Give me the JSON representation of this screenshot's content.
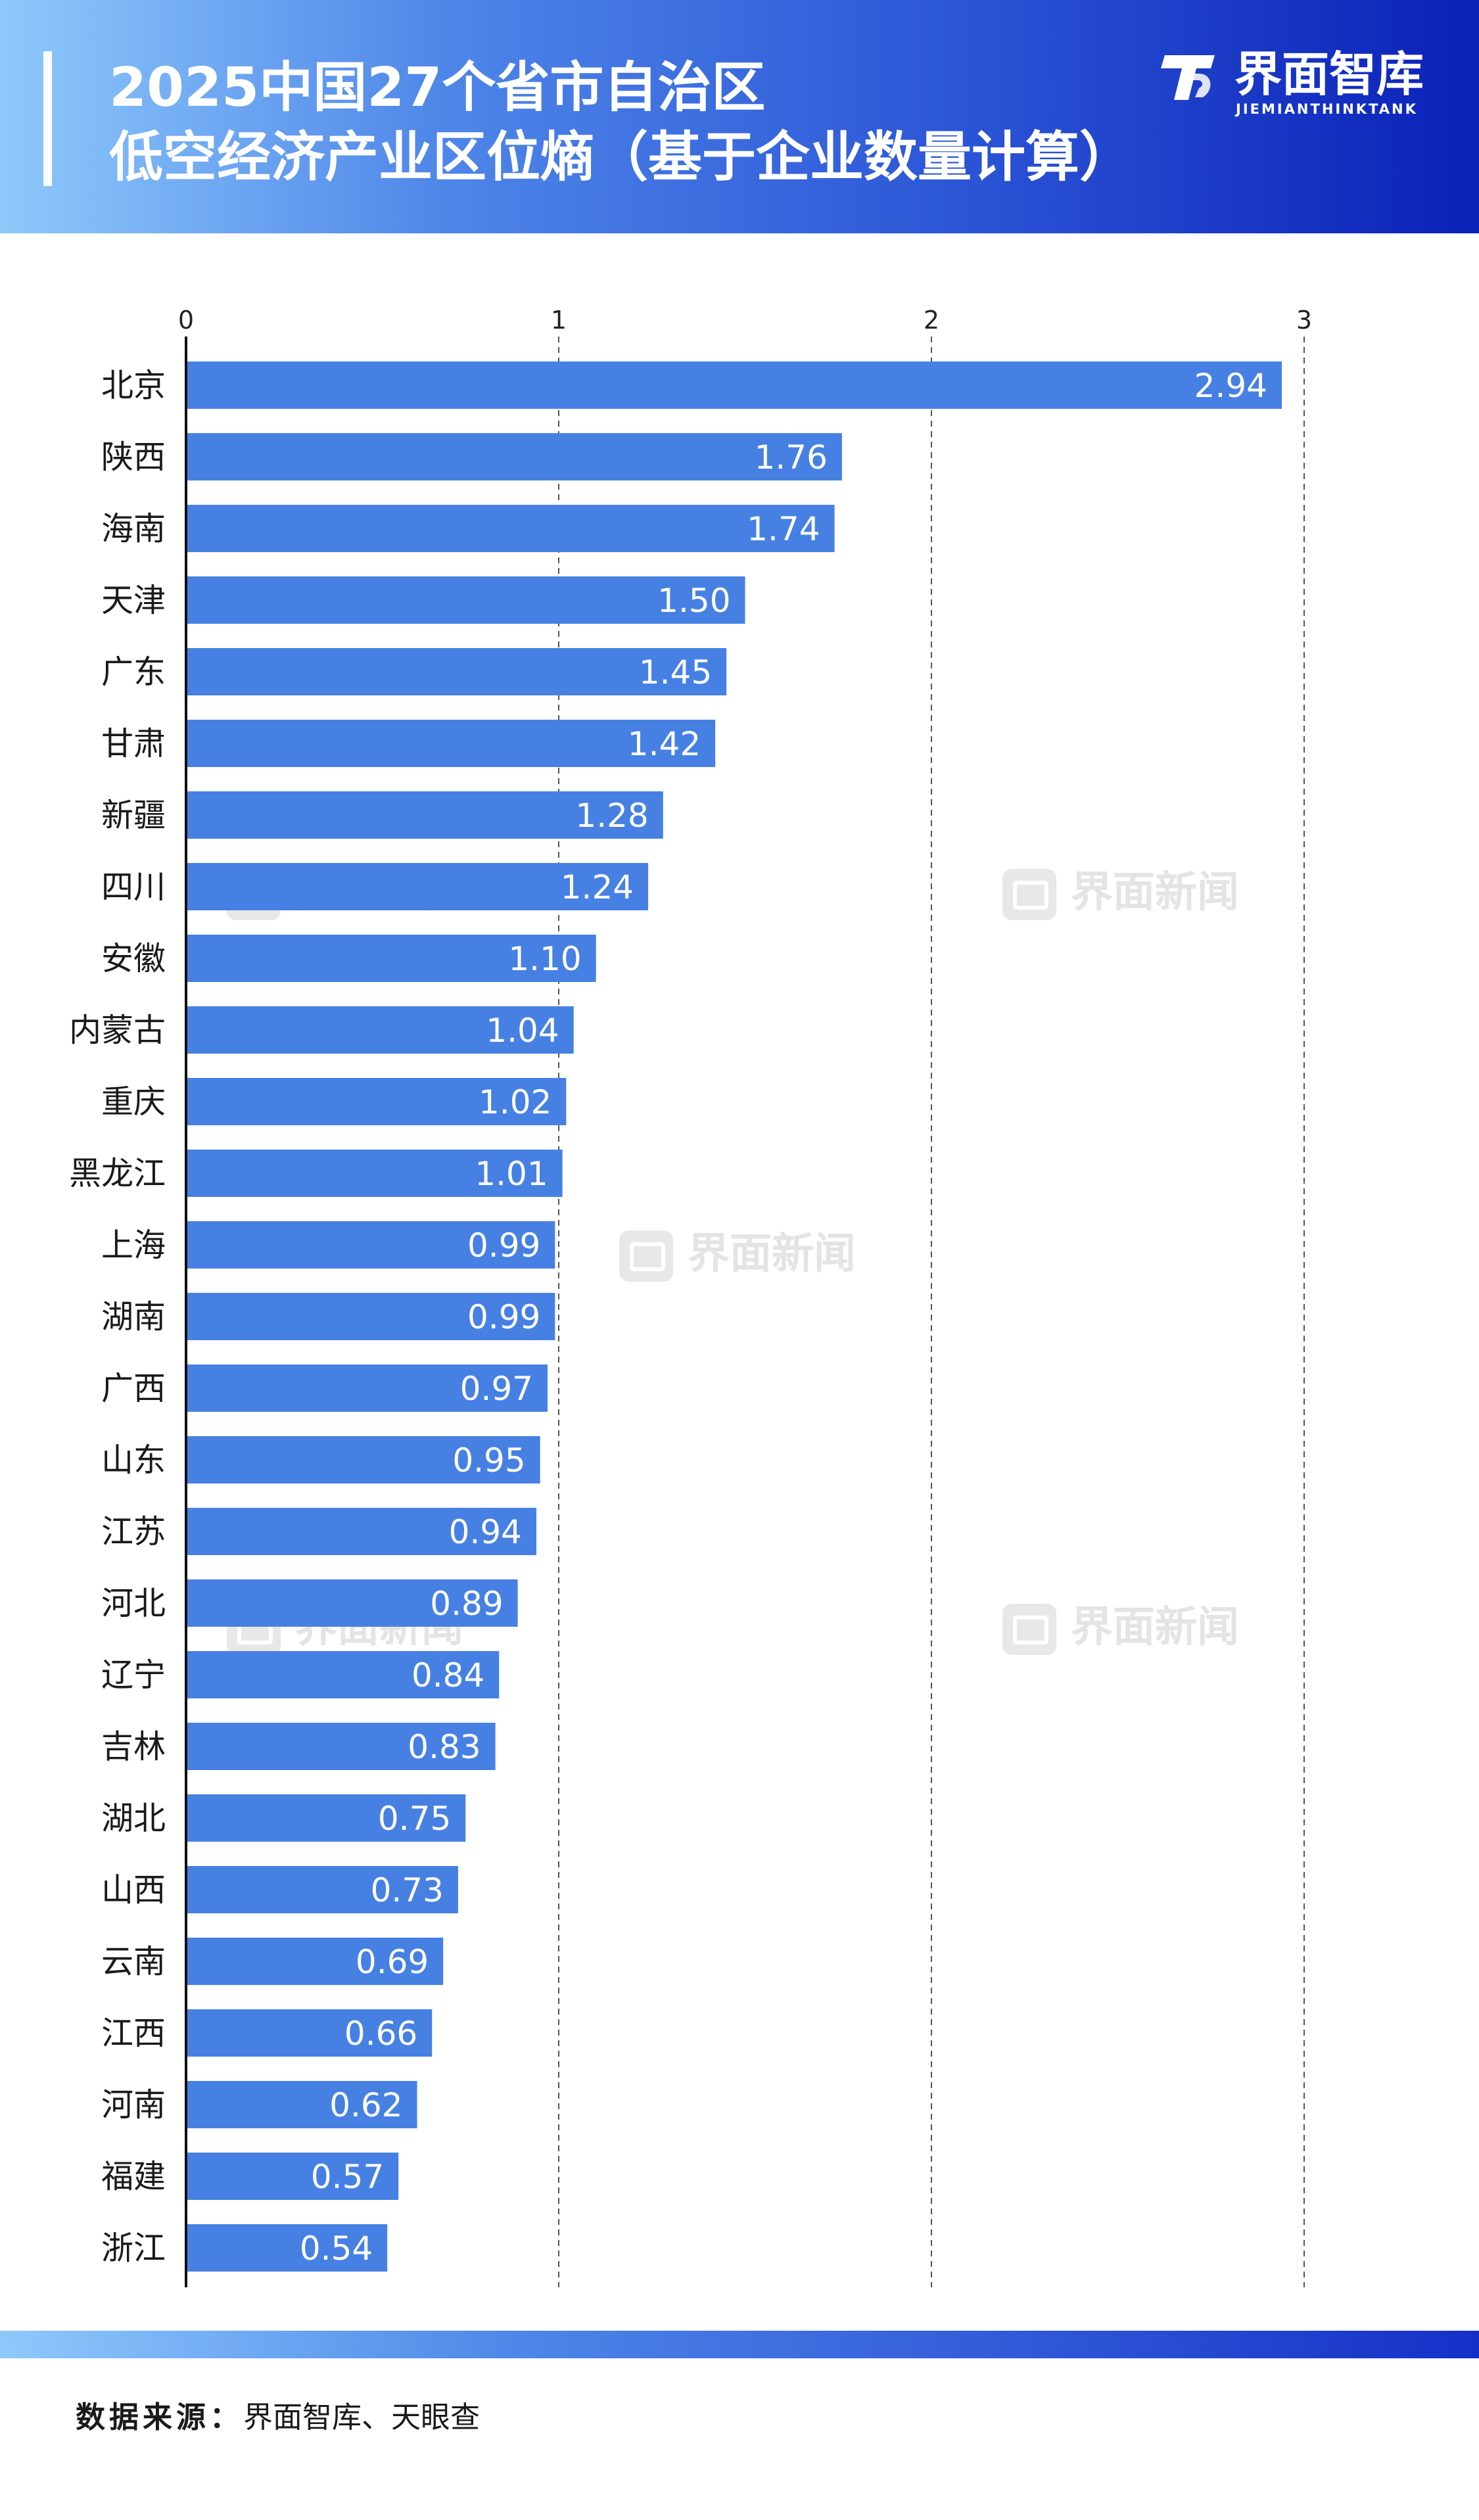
{
  "header": {
    "title_line1": "2025中国27个省市自治区",
    "title_line2": "低空经济产业区位熵（基于企业数量计算）",
    "brand_name": "界面智库",
    "brand_sub": "JIEMIANTHINKTANK"
  },
  "watermark_text": "界面新闻",
  "footer": {
    "source_label": "数据来源：",
    "source_text": "界面智库、天眼查"
  },
  "colors": {
    "bar": "#4680e3",
    "bar_label": "#ffffff",
    "grid": "#555555",
    "axis": "#111111"
  },
  "chart_data": {
    "type": "bar",
    "orientation": "horizontal",
    "xlim": [
      0,
      3
    ],
    "xticks": [
      "0",
      "1",
      "2",
      "3"
    ],
    "grid": "dashed vertical at 1, 2, 3",
    "categories": [
      "北京",
      "陕西",
      "海南",
      "天津",
      "广东",
      "甘肃",
      "新疆",
      "四川",
      "安徽",
      "内蒙古",
      "重庆",
      "黑龙江",
      "上海",
      "湖南",
      "广西",
      "山东",
      "江苏",
      "河北",
      "辽宁",
      "吉林",
      "湖北",
      "山西",
      "云南",
      "江西",
      "河南",
      "福建",
      "浙江"
    ],
    "values": [
      2.94,
      1.76,
      1.74,
      1.5,
      1.45,
      1.42,
      1.28,
      1.24,
      1.1,
      1.04,
      1.02,
      1.01,
      0.99,
      0.99,
      0.97,
      0.95,
      0.94,
      0.89,
      0.84,
      0.83,
      0.75,
      0.73,
      0.69,
      0.66,
      0.62,
      0.57,
      0.54
    ],
    "value_labels": [
      "2.94",
      "1.76",
      "1.74",
      "1.50",
      "1.45",
      "1.42",
      "1.28",
      "1.24",
      "1.10",
      "1.04",
      "1.02",
      "1.01",
      "0.99",
      "0.99",
      "0.97",
      "0.95",
      "0.94",
      "0.89",
      "0.84",
      "0.83",
      "0.75",
      "0.73",
      "0.69",
      "0.66",
      "0.62",
      "0.57",
      "0.54"
    ]
  }
}
